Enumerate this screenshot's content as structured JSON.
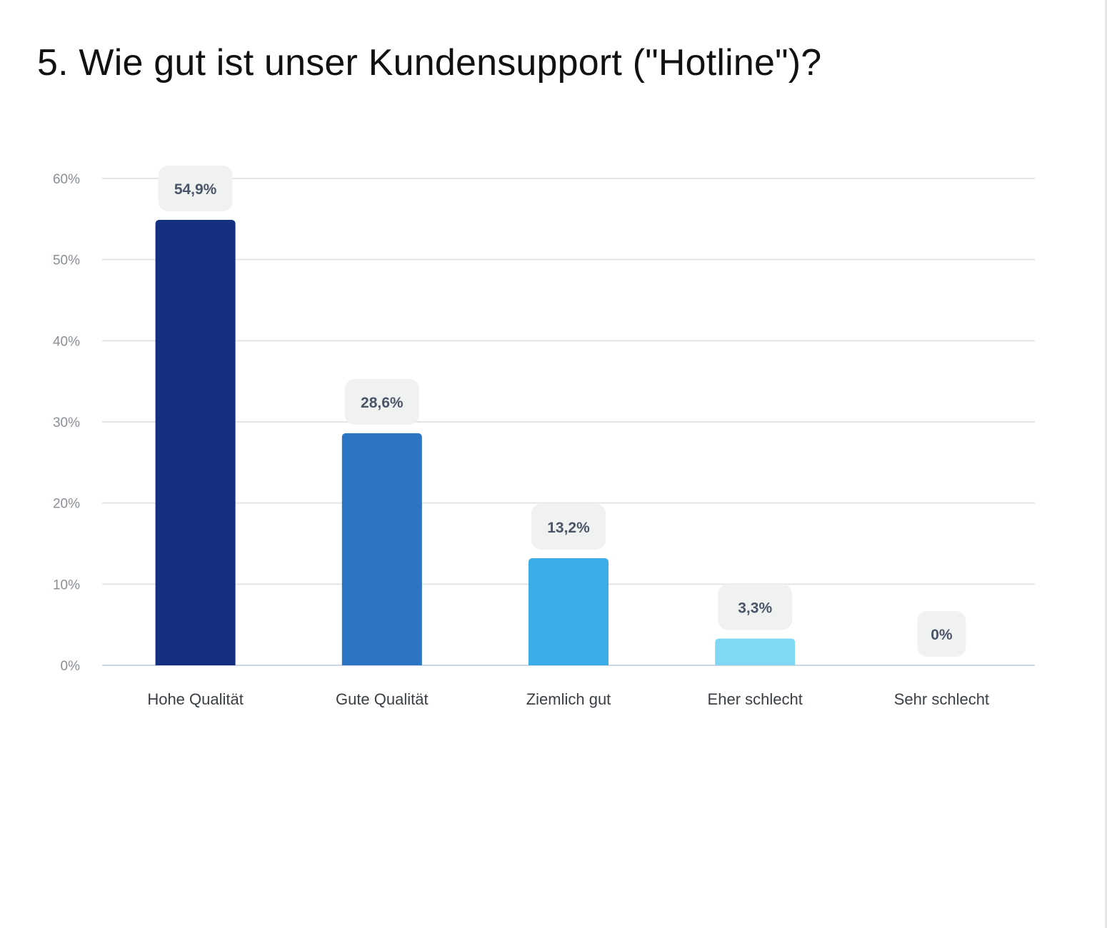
{
  "title": "5. Wie gut ist unser Kundensupport (\"Hotline\")?",
  "chart_data": {
    "type": "bar",
    "title": "5. Wie gut ist unser Kundensupport (\"Hotline\")?",
    "xlabel": "",
    "ylabel": "",
    "categories": [
      "Hohe Qualität",
      "Gute Qualität",
      "Ziemlich gut",
      "Eher schlecht",
      "Sehr schlecht"
    ],
    "values": [
      54.9,
      28.6,
      13.2,
      3.3,
      0
    ],
    "data_labels": [
      "54,9%",
      "28,6%",
      "13,2%",
      "3,3%",
      "0%"
    ],
    "colors": [
      "#132f7e",
      "#2c74c4",
      "#3aade6",
      "#80d8f3",
      "#80d8f3"
    ],
    "ylim": [
      0,
      60
    ],
    "yticks": [
      0,
      10,
      20,
      30,
      40,
      50,
      60
    ],
    "ytick_labels": [
      "0%",
      "10%",
      "20%",
      "30%",
      "40%",
      "50%",
      "60%"
    ],
    "grid": true,
    "legend": "none",
    "grid_color": "#e3e5e8",
    "baseline_color": "#cfd6e6",
    "label_bg_color": "#f0f2f2",
    "label_text_color": "#4a5568"
  }
}
